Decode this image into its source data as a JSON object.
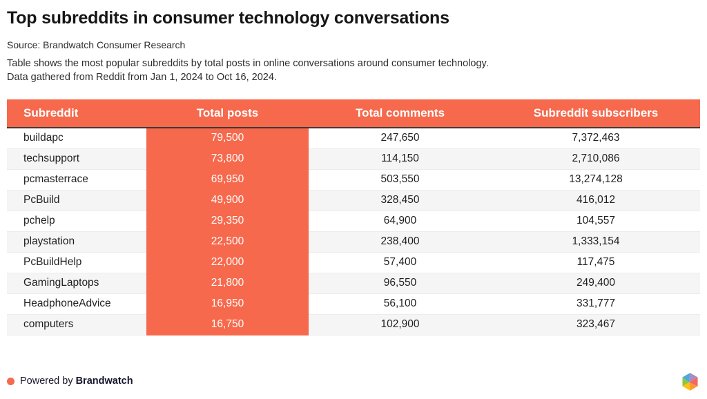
{
  "header": {
    "title": "Top subreddits in consumer technology conversations",
    "source": "Source: Brandwatch Consumer Research",
    "description_line1": "Table shows the most popular subreddits by total posts in online conversations around consumer technology.",
    "description_line2": "Data gathered from Reddit from Jan 1, 2024 to Oct 16, 2024."
  },
  "table": {
    "columns": [
      "Subreddit",
      "Total posts",
      "Total comments",
      "Subreddit subscribers"
    ],
    "highlighted_column": "Total posts",
    "rows": [
      {
        "subreddit": "buildapc",
        "total_posts": "79,500",
        "total_comments": "247,650",
        "subscribers": "7,372,463"
      },
      {
        "subreddit": "techsupport",
        "total_posts": "73,800",
        "total_comments": "114,150",
        "subscribers": "2,710,086"
      },
      {
        "subreddit": "pcmasterrace",
        "total_posts": "69,950",
        "total_comments": "503,550",
        "subscribers": "13,274,128"
      },
      {
        "subreddit": "PcBuild",
        "total_posts": "49,900",
        "total_comments": "328,450",
        "subscribers": "416,012"
      },
      {
        "subreddit": "pchelp",
        "total_posts": "29,350",
        "total_comments": "64,900",
        "subscribers": "104,557"
      },
      {
        "subreddit": "playstation",
        "total_posts": "22,500",
        "total_comments": "238,400",
        "subscribers": "1,333,154"
      },
      {
        "subreddit": "PcBuildHelp",
        "total_posts": "22,000",
        "total_comments": "57,400",
        "subscribers": "117,475"
      },
      {
        "subreddit": "GamingLaptops",
        "total_posts": "21,800",
        "total_comments": "96,550",
        "subscribers": "249,400"
      },
      {
        "subreddit": "HeadphoneAdvice",
        "total_posts": "16,950",
        "total_comments": "56,100",
        "subscribers": "331,777"
      },
      {
        "subreddit": "computers",
        "total_posts": "16,750",
        "total_comments": "102,900",
        "subscribers": "323,467"
      }
    ]
  },
  "footer": {
    "powered_by": "Powered by",
    "brand": "Brandwatch"
  },
  "icons": {
    "brand_dot": "filled-circle",
    "logo": "faceted-hexagon-gem"
  },
  "colors": {
    "accent": "#F6694C",
    "header_text": "#FFFFFF",
    "body_text": "#1F1F1F",
    "row_alt": "#F5F5F6",
    "header_rule": "#3A3A3A",
    "logo_blue": "#4CA9DC",
    "logo_purple": "#A88CC4",
    "logo_red": "#F2685C",
    "logo_orange": "#F99B32",
    "logo_yellow": "#FFC20E",
    "logo_green": "#8CC63F"
  },
  "chart_data": {
    "type": "table",
    "title": "Top subreddits in consumer technology conversations",
    "columns": [
      "Subreddit",
      "Total posts",
      "Total comments",
      "Subreddit subscribers"
    ],
    "highlighted_column": "Total posts",
    "rows": [
      [
        "buildapc",
        79500,
        247650,
        7372463
      ],
      [
        "techsupport",
        73800,
        114150,
        2710086
      ],
      [
        "pcmasterrace",
        69950,
        503550,
        13274128
      ],
      [
        "PcBuild",
        49900,
        328450,
        416012
      ],
      [
        "pchelp",
        29350,
        64900,
        104557
      ],
      [
        "playstation",
        22500,
        238400,
        1333154
      ],
      [
        "PcBuildHelp",
        22000,
        57400,
        117475
      ],
      [
        "GamingLaptops",
        21800,
        96550,
        249400
      ],
      [
        "HeadphoneAdvice",
        16950,
        56100,
        331777
      ],
      [
        "computers",
        16750,
        102900,
        323467
      ]
    ],
    "sorted_by": "Total posts descending",
    "legend_position": "none",
    "grid": "row-stripes"
  }
}
